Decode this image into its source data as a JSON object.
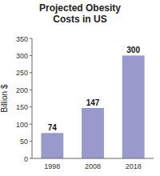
{
  "chart_data": {
    "type": "bar",
    "title": "Projected Obesity\nCosts in US",
    "categories": [
      "1998",
      "2008",
      "2018"
    ],
    "values": [
      74,
      147,
      300
    ],
    "color": "#9999cc",
    "ylabel": "Billion $",
    "ylim": [
      0,
      350
    ],
    "yticks": [
      0,
      50,
      100,
      150,
      200,
      250,
      300,
      350
    ],
    "grid": false,
    "data_labels": true
  }
}
